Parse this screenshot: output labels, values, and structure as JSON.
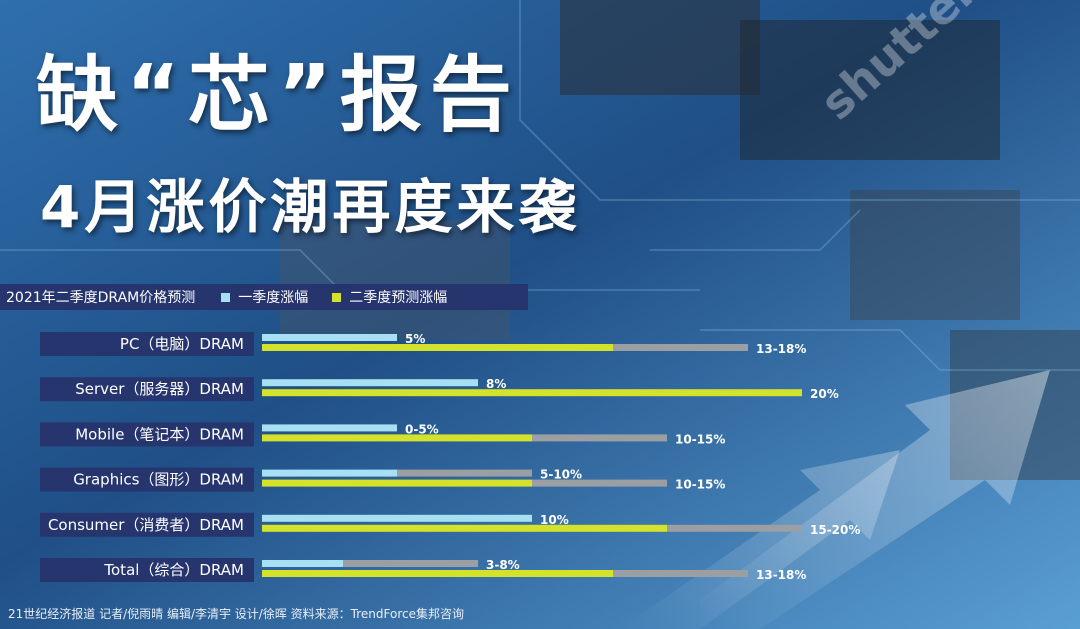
{
  "header": {
    "title": "缺“芯”报告",
    "subtitle": "4月涨价潮再度来袭"
  },
  "watermark": "shutterstock",
  "legend": {
    "title": "2021年二季度DRAM价格预测",
    "q1_label": "一季度涨幅",
    "q2_label": "二季度预测涨幅"
  },
  "colors": {
    "q1": "#a7dff3",
    "q2": "#d4e22b",
    "range": "#9b9ea3",
    "label_bg": "#27356e",
    "value_text": "#ffffff"
  },
  "chart_data": {
    "type": "bar",
    "orientation": "horizontal",
    "title": "2021年二季度DRAM价格预测",
    "unit": "%",
    "categories": [
      "PC（电脑）DRAM",
      "Server（服务器）DRAM",
      "Mobile（笔记本）DRAM",
      "Graphics（图形）DRAM",
      "Consumer（消费者）DRAM",
      "Total（综合）DRAM"
    ],
    "series": [
      {
        "name": "一季度涨幅",
        "low": [
          5,
          8,
          0,
          5,
          10,
          3
        ],
        "high": [
          5,
          8,
          5,
          10,
          10,
          8
        ],
        "labels": [
          "5%",
          "8%",
          "0-5%",
          "5-10%",
          "10%",
          "3-8%"
        ]
      },
      {
        "name": "二季度预测涨幅",
        "low": [
          13,
          20,
          10,
          10,
          15,
          13
        ],
        "high": [
          18,
          20,
          15,
          15,
          20,
          18
        ],
        "labels": [
          "13-18%",
          "20%",
          "10-15%",
          "10-15%",
          "15-20%",
          "13-18%"
        ]
      }
    ]
  },
  "footer": "21世纪经济报道 记者/倪雨晴  编辑/李清宇  设计/徐晖  资料来源：TrendForce集邦咨询"
}
